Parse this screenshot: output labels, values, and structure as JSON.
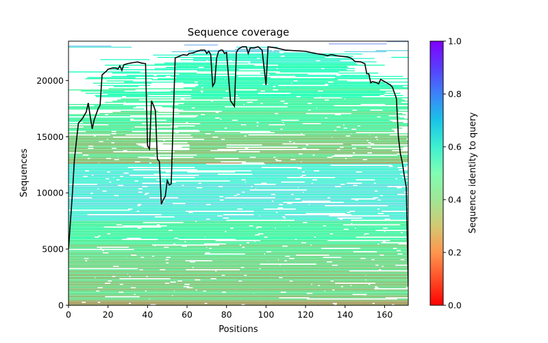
{
  "chart_data": {
    "type": "heatmap",
    "title": "Sequence coverage",
    "xlabel": "Positions",
    "ylabel": "Sequences",
    "xlim": [
      0,
      172
    ],
    "ylim": [
      0,
      23500
    ],
    "xticks": [
      0,
      20,
      40,
      60,
      80,
      100,
      120,
      140,
      160
    ],
    "yticks": [
      0,
      5000,
      10000,
      15000,
      20000
    ],
    "colorbar": {
      "label": "Sequence identity to query",
      "range": [
        0.0,
        1.0
      ],
      "ticks": [
        "0.0",
        "0.2",
        "0.4",
        "0.6",
        "0.8",
        "1.0"
      ],
      "colormap": "rainbow_r"
    },
    "identity_bands": [
      {
        "y_range": [
          0,
          500
        ],
        "identity": 0.2
      },
      {
        "y_range": [
          500,
          3000
        ],
        "identity": 0.3
      },
      {
        "y_range": [
          3000,
          5500
        ],
        "identity": 0.33
      },
      {
        "y_range": [
          5500,
          7500
        ],
        "identity": 0.42
      },
      {
        "y_range": [
          7500,
          12600
        ],
        "identity": 0.62
      },
      {
        "y_range": [
          12600,
          13000
        ],
        "identity": 0.22
      },
      {
        "y_range": [
          13000,
          15500
        ],
        "identity": 0.3
      },
      {
        "y_range": [
          15500,
          17500
        ],
        "identity": 0.38
      },
      {
        "y_range": [
          17500,
          19500
        ],
        "identity": 0.44
      },
      {
        "y_range": [
          19500,
          21500
        ],
        "identity": 0.5
      },
      {
        "y_range": [
          21500,
          22500
        ],
        "identity": 0.58
      },
      {
        "y_range": [
          22500,
          23000
        ],
        "identity": 0.66
      },
      {
        "y_range": [
          23000,
          23500
        ],
        "identity": 0.76
      }
    ],
    "series": [
      {
        "type": "line",
        "color": "#000000",
        "points": [
          [
            0,
            5000
          ],
          [
            2,
            10000
          ],
          [
            3,
            13000
          ],
          [
            5,
            16200
          ],
          [
            7,
            16600
          ],
          [
            9,
            17200
          ],
          [
            10,
            18000
          ],
          [
            11,
            16800
          ],
          [
            12,
            15700
          ],
          [
            13,
            16500
          ],
          [
            15,
            17500
          ],
          [
            16,
            17800
          ],
          [
            17,
            20500
          ],
          [
            19,
            20800
          ],
          [
            20,
            21000
          ],
          [
            22,
            21100
          ],
          [
            24,
            21100
          ],
          [
            25,
            21000
          ],
          [
            26,
            21300
          ],
          [
            27,
            20900
          ],
          [
            28,
            21400
          ],
          [
            30,
            21500
          ],
          [
            33,
            21600
          ],
          [
            35,
            21650
          ],
          [
            37,
            21550
          ],
          [
            39,
            21500
          ],
          [
            40,
            14200
          ],
          [
            41,
            13900
          ],
          [
            42,
            18200
          ],
          [
            43,
            17800
          ],
          [
            44,
            17300
          ],
          [
            45,
            13000
          ],
          [
            46,
            12800
          ],
          [
            47,
            9000
          ],
          [
            48,
            9400
          ],
          [
            49,
            9700
          ],
          [
            50,
            11100
          ],
          [
            51,
            10700
          ],
          [
            52,
            10800
          ],
          [
            54,
            22000
          ],
          [
            58,
            22300
          ],
          [
            60,
            22250
          ],
          [
            61,
            22400
          ],
          [
            63,
            22450
          ],
          [
            65,
            22600
          ],
          [
            67,
            22700
          ],
          [
            69,
            22700
          ],
          [
            70,
            22400
          ],
          [
            71,
            22600
          ],
          [
            72,
            22300
          ],
          [
            73,
            19500
          ],
          [
            74,
            19800
          ],
          [
            75,
            22000
          ],
          [
            76,
            22600
          ],
          [
            77,
            22700
          ],
          [
            78,
            22700
          ],
          [
            79,
            22400
          ],
          [
            80,
            22500
          ],
          [
            82,
            18200
          ],
          [
            84,
            17700
          ],
          [
            85,
            22500
          ],
          [
            86,
            22800
          ],
          [
            88,
            23000
          ],
          [
            90,
            23000
          ],
          [
            91,
            22400
          ],
          [
            92,
            22900
          ],
          [
            94,
            22900
          ],
          [
            96,
            23000
          ],
          [
            98,
            22700
          ],
          [
            100,
            19600
          ],
          [
            101,
            23000
          ],
          [
            105,
            22900
          ],
          [
            110,
            22700
          ],
          [
            120,
            22600
          ],
          [
            125,
            22400
          ],
          [
            129,
            22300
          ],
          [
            131,
            22200
          ],
          [
            133,
            22300
          ],
          [
            136,
            22200
          ],
          [
            141,
            22100
          ],
          [
            143,
            22000
          ],
          [
            145,
            21700
          ],
          [
            148,
            21650
          ],
          [
            150,
            21500
          ],
          [
            151,
            20600
          ],
          [
            152,
            20600
          ],
          [
            153,
            19800
          ],
          [
            154,
            19900
          ],
          [
            156,
            19800
          ],
          [
            157,
            19700
          ],
          [
            158,
            20100
          ],
          [
            160,
            19900
          ],
          [
            162,
            19700
          ],
          [
            163,
            19600
          ],
          [
            164,
            19400
          ],
          [
            165,
            18900
          ],
          [
            166,
            18400
          ],
          [
            167,
            15000
          ],
          [
            168,
            13500
          ],
          [
            169,
            12700
          ],
          [
            170,
            11500
          ],
          [
            171,
            10500
          ],
          [
            172,
            1700
          ]
        ]
      }
    ]
  }
}
